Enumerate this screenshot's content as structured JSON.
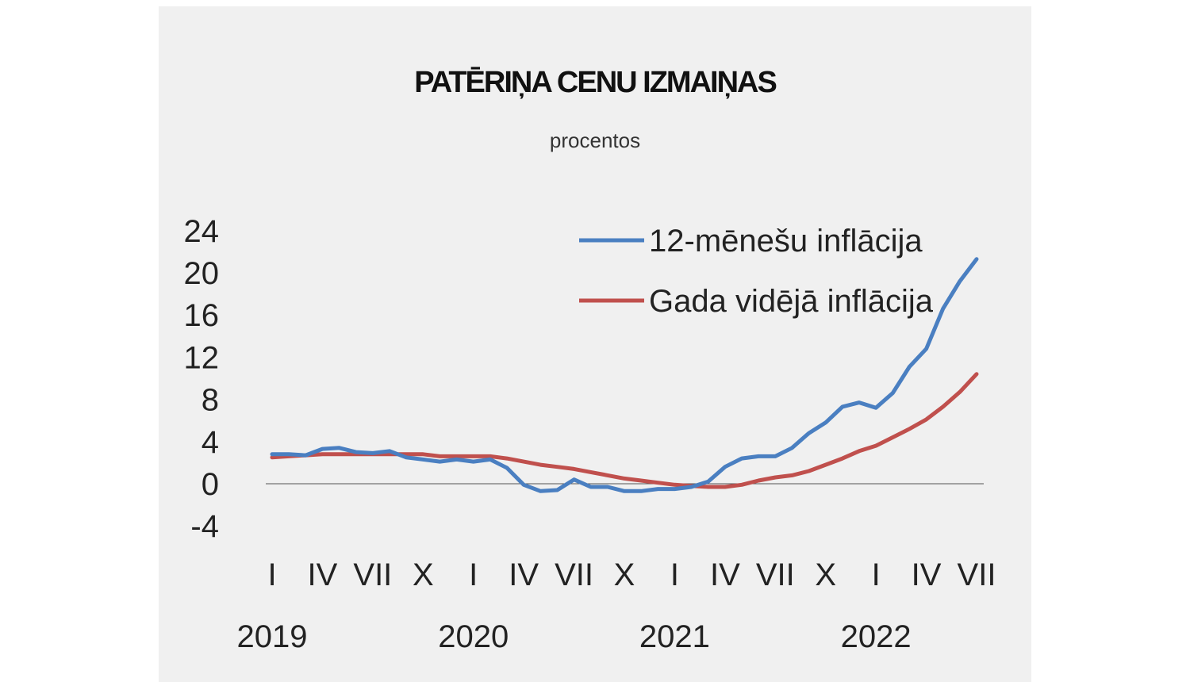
{
  "chart_data": {
    "type": "line",
    "title": "PATĒRIŅA CENU IZMAIŅAS",
    "subtitle": "procentos",
    "ylim": [
      -4,
      24
    ],
    "yticks": [
      "24",
      "20",
      "16",
      "12",
      "8",
      "4",
      "0",
      "-4"
    ],
    "ytick_values": [
      24,
      20,
      16,
      12,
      8,
      4,
      0,
      -4
    ],
    "month_labels": [
      "I",
      "IV",
      "VII",
      "X",
      "I",
      "IV",
      "VII",
      "X",
      "I",
      "IV",
      "VII",
      "X",
      "I",
      "IV",
      "VII"
    ],
    "year_labels": [
      "2019",
      "2020",
      "2021",
      "2022"
    ],
    "x_count": 43,
    "series": [
      {
        "name": "12-mēnešu inflācija",
        "color": "#4a7fc1",
        "values": [
          2.8,
          2.8,
          2.7,
          3.3,
          3.4,
          3.0,
          2.9,
          3.1,
          2.5,
          2.3,
          2.1,
          2.3,
          2.1,
          2.3,
          1.5,
          -0.1,
          -0.7,
          -0.6,
          0.4,
          -0.3,
          -0.3,
          -0.7,
          -0.7,
          -0.5,
          -0.5,
          -0.3,
          0.2,
          1.6,
          2.4,
          2.6,
          2.6,
          3.4,
          4.8,
          5.8,
          7.3,
          7.7,
          7.2,
          8.6,
          11.1,
          12.8,
          16.6,
          19.2,
          21.3
        ]
      },
      {
        "name": "Gada vidējā inflācija",
        "color": "#c0504d",
        "values": [
          2.5,
          2.6,
          2.7,
          2.8,
          2.8,
          2.8,
          2.8,
          2.8,
          2.8,
          2.8,
          2.6,
          2.6,
          2.6,
          2.6,
          2.4,
          2.1,
          1.8,
          1.6,
          1.4,
          1.1,
          0.8,
          0.5,
          0.3,
          0.1,
          -0.1,
          -0.2,
          -0.3,
          -0.3,
          -0.1,
          0.3,
          0.6,
          0.8,
          1.2,
          1.8,
          2.4,
          3.1,
          3.6,
          4.4,
          5.2,
          6.1,
          7.3,
          8.7,
          10.4
        ]
      }
    ]
  }
}
